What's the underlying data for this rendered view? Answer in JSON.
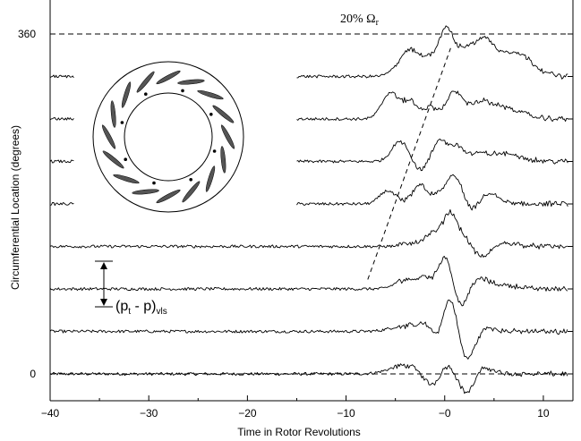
{
  "chart_data": {
    "type": "line",
    "title": "",
    "xlabel": "Time in Rotor Revolutions",
    "ylabel": "Circumferential Location (degrees)",
    "xlim": [
      -40,
      13
    ],
    "x_ticks": [
      -40,
      -30,
      -20,
      -10,
      0,
      10
    ],
    "x_tick_labels": [
      "−40",
      "−30",
      "−20",
      "−10",
      "−0",
      "10"
    ],
    "y_ticks": [
      0,
      360
    ],
    "y_tick_labels": [
      "0",
      "360"
    ],
    "grid": false,
    "reference_lines": [
      {
        "label": "0",
        "y": 0,
        "style": "dashed"
      },
      {
        "label": "360",
        "y": 360,
        "style": "dashed"
      }
    ],
    "trace_baseline_degrees": [
      0,
      45,
      90,
      135,
      180,
      225,
      270,
      315
    ],
    "annotations": {
      "speed_line": {
        "label_text": "20% Ω",
        "label_subscript": "r",
        "x_start": -7.8,
        "x_end": 0.6,
        "y_start": 100,
        "y_end": 345
      },
      "scale_bar": {
        "label_main": "(p",
        "label_sub_t": "t",
        "label_mid": " - p)",
        "label_sub_vls": "vls"
      }
    },
    "series": [
      {
        "index": 0,
        "baseline": 0,
        "segments": [
          [
            -40,
            12.5
          ]
        ],
        "events": [
          [
            -4,
            9,
            2.2
          ],
          [
            -1.3,
            -14,
            1.2
          ],
          [
            0.2,
            11,
            1.0
          ],
          [
            2.3,
            -22,
            1.1
          ],
          [
            3.8,
            8,
            1.4
          ]
        ]
      },
      {
        "index": 1,
        "baseline": 45,
        "segments": [
          [
            -40,
            12.5
          ]
        ],
        "events": [
          [
            -4,
            6,
            2.0
          ],
          [
            -1.8,
            8,
            1.0
          ],
          [
            -0.8,
            -10,
            1.0
          ],
          [
            0.6,
            40,
            1.0
          ],
          [
            2.2,
            -32,
            1.2
          ],
          [
            4,
            5,
            1.4
          ]
        ]
      },
      {
        "index": 2,
        "baseline": 90,
        "segments": [
          [
            -40,
            12.5
          ]
        ],
        "events": [
          [
            -4,
            10,
            1.4
          ],
          [
            -2,
            12,
            1.0
          ],
          [
            0.1,
            38,
            1.0
          ],
          [
            1.6,
            -22,
            1.2
          ],
          [
            3.3,
            12,
            1.4
          ],
          [
            6,
            4,
            2
          ]
        ]
      },
      {
        "index": 3,
        "baseline": 135,
        "segments": [
          [
            -40,
            12.5
          ]
        ],
        "events": [
          [
            -3,
            4,
            1.5
          ],
          [
            -1.2,
            12,
            1.0
          ],
          [
            0.5,
            34,
            1.0
          ],
          [
            2.1,
            12,
            1.2
          ],
          [
            3.6,
            -14,
            1.4
          ],
          [
            6,
            4,
            2
          ]
        ]
      },
      {
        "index": 4,
        "baseline": 180,
        "segments": [
          [
            -40,
            -37.5
          ],
          [
            -15,
            12.5
          ]
        ],
        "events": [
          [
            -5.8,
            14,
            1.1
          ],
          [
            -2.5,
            20,
            1.1
          ],
          [
            -0.5,
            8,
            1.0
          ],
          [
            1.0,
            30,
            1.1
          ],
          [
            2.8,
            -10,
            1.1
          ],
          [
            4.4,
            12,
            1.4
          ]
        ]
      },
      {
        "index": 5,
        "baseline": 225,
        "segments": [
          [
            -40,
            -37.5
          ],
          [
            -15,
            12.5
          ]
        ],
        "events": [
          [
            -4.5,
            22,
            1.2
          ],
          [
            -2.5,
            -10,
            1.0
          ],
          [
            -0.5,
            22,
            1.0
          ],
          [
            1.2,
            16,
            1.0
          ],
          [
            3.3,
            6,
            1.4
          ],
          [
            6,
            8,
            2.5
          ]
        ]
      },
      {
        "index": 6,
        "baseline": 270,
        "segments": [
          [
            -40,
            -37.5
          ],
          [
            -15,
            12.5
          ]
        ],
        "events": [
          [
            -5.5,
            28,
            1.2
          ],
          [
            -3.5,
            18,
            1.0
          ],
          [
            -1.5,
            12,
            1.0
          ],
          [
            1.0,
            28,
            1.2
          ],
          [
            3.5,
            14,
            1.5
          ],
          [
            6,
            12,
            2.5
          ]
        ]
      },
      {
        "index": 7,
        "baseline": 315,
        "segments": [
          [
            -40,
            -37.5
          ],
          [
            -15,
            12.5
          ]
        ],
        "events": [
          [
            -3.5,
            28,
            1.6
          ],
          [
            -1.3,
            16,
            1.0
          ],
          [
            0.2,
            50,
            1.0
          ],
          [
            1.9,
            22,
            1.0
          ],
          [
            3.8,
            36,
            1.5
          ],
          [
            7,
            26,
            2.5
          ]
        ]
      }
    ],
    "inset": {
      "type": "annulus",
      "blade_count": 16,
      "marker_count": 8,
      "description": ""
    }
  }
}
